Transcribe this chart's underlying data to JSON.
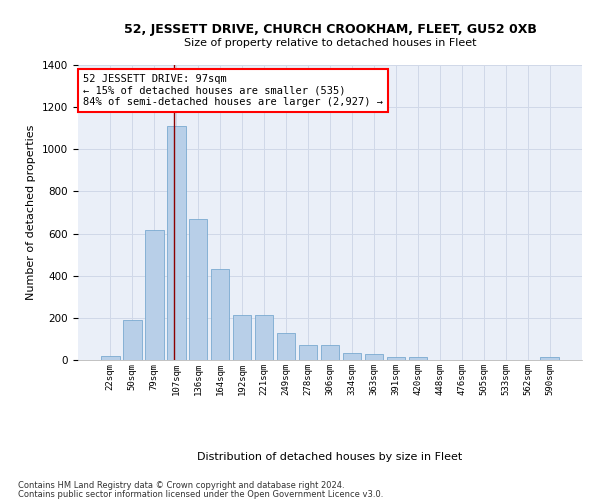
{
  "title": "52, JESSETT DRIVE, CHURCH CROOKHAM, FLEET, GU52 0XB",
  "subtitle": "Size of property relative to detached houses in Fleet",
  "xlabel": "Distribution of detached houses by size in Fleet",
  "ylabel": "Number of detached properties",
  "categories": [
    "22sqm",
    "50sqm",
    "79sqm",
    "107sqm",
    "136sqm",
    "164sqm",
    "192sqm",
    "221sqm",
    "249sqm",
    "278sqm",
    "306sqm",
    "334sqm",
    "363sqm",
    "391sqm",
    "420sqm",
    "448sqm",
    "476sqm",
    "505sqm",
    "533sqm",
    "562sqm",
    "590sqm"
  ],
  "values": [
    20,
    190,
    615,
    1110,
    670,
    430,
    215,
    215,
    130,
    70,
    70,
    35,
    30,
    15,
    15,
    0,
    0,
    0,
    0,
    0,
    15
  ],
  "bar_color": "#b8cfe8",
  "bar_edge_color": "#7aaad0",
  "grid_color": "#d0d8e8",
  "background_color": "#eaeff8",
  "annotation_text": "52 JESSETT DRIVE: 97sqm\n← 15% of detached houses are smaller (535)\n84% of semi-detached houses are larger (2,927) →",
  "vline_x": 2.9,
  "footnote1": "Contains HM Land Registry data © Crown copyright and database right 2024.",
  "footnote2": "Contains public sector information licensed under the Open Government Licence v3.0.",
  "ylim": [
    0,
    1400
  ],
  "yticks": [
    0,
    200,
    400,
    600,
    800,
    1000,
    1200,
    1400
  ]
}
